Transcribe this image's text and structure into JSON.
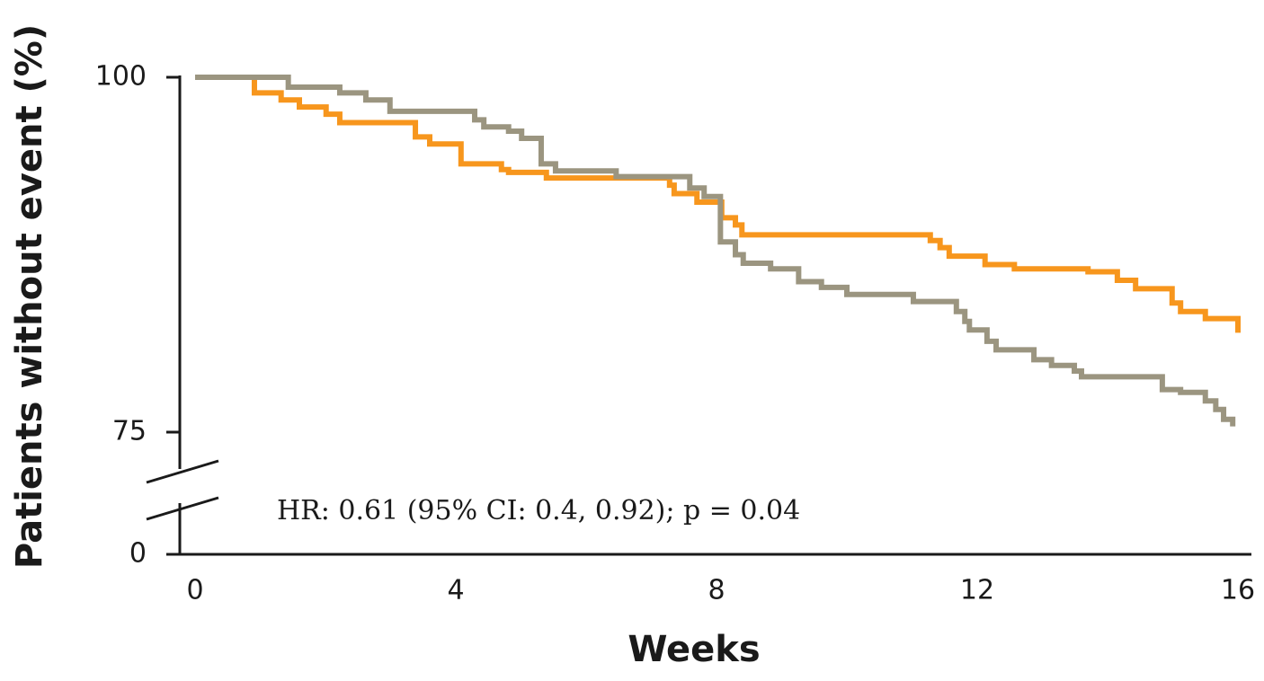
{
  "chart_data": {
    "type": "line",
    "step": true,
    "axis_break": true,
    "xlabel": "Weeks",
    "ylabel": "Patients without event (%)",
    "annotation": "HR: 0.61 (95% CI: 0.4, 0.92); p = 0.04",
    "xlim": [
      0,
      16
    ],
    "xticks": [
      0,
      4,
      8,
      12,
      16
    ],
    "ylim": [
      0,
      100
    ],
    "yticks": [
      0,
      75,
      100
    ],
    "series": [
      {
        "color": "#f7961d",
        "x": [
          0,
          0.91,
          1.32,
          1.6,
          2.01,
          2.22,
          3.38,
          3.6,
          4.08,
          4.7,
          4.81,
          5.39,
          7.28,
          7.35,
          7.7,
          8.08,
          8.29,
          8.39,
          11.28,
          11.43,
          11.57,
          12.12,
          12.57,
          13.7,
          14.15,
          14.43,
          14.99,
          15.12,
          15.5,
          16
        ],
        "values": [
          100,
          98.9,
          98.4,
          97.9,
          97.4,
          96.8,
          95.8,
          95.3,
          93.9,
          93.5,
          93.3,
          92.9,
          92.4,
          91.8,
          91.2,
          90.1,
          89.6,
          88.9,
          88.5,
          88.0,
          87.4,
          86.8,
          86.5,
          86.3,
          85.7,
          85.1,
          84.1,
          83.5,
          83.0,
          82.0
        ]
      },
      {
        "color": "#9b9580",
        "x": [
          0,
          1.43,
          2.22,
          2.62,
          2.99,
          4.29,
          4.43,
          4.81,
          5.01,
          5.31,
          5.53,
          6.46,
          7.59,
          7.81,
          8.06,
          8.29,
          8.41,
          8.83,
          9.26,
          9.61,
          10.0,
          11.02,
          11.68,
          11.81,
          11.88,
          12.15,
          12.29,
          12.87,
          13.14,
          13.49,
          13.6,
          14.84,
          15.12,
          15.5,
          15.66,
          15.78,
          15.92
        ],
        "values": [
          100,
          99.3,
          98.9,
          98.4,
          97.6,
          97.0,
          96.5,
          96.2,
          95.7,
          93.9,
          93.4,
          93.0,
          92.2,
          91.6,
          88.4,
          87.5,
          86.9,
          86.5,
          85.6,
          85.2,
          84.7,
          84.2,
          83.5,
          82.8,
          82.2,
          81.4,
          80.8,
          80.1,
          79.7,
          79.3,
          78.9,
          78.0,
          77.8,
          77.2,
          76.6,
          75.9,
          75.4
        ]
      }
    ]
  }
}
